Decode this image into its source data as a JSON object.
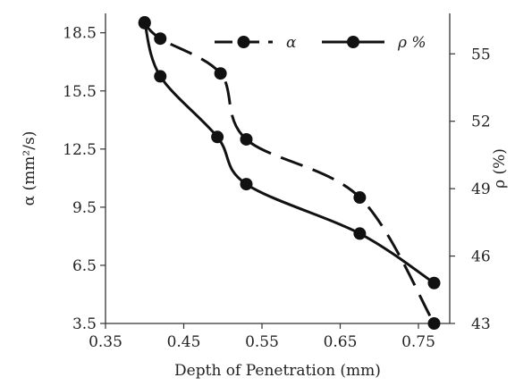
{
  "chart_data": {
    "type": "line",
    "xlabel": "Depth of Penetration (mm)",
    "ylabel_left": "α (mm²/s)",
    "ylabel_right": "ρ (%)",
    "x_ticks": [
      "0.35",
      "0.45",
      "0.55",
      "0.65",
      "0.75"
    ],
    "y_left_ticks": [
      "3.5",
      "6.5",
      "9.5",
      "12.5",
      "15.5",
      "18.5"
    ],
    "y_right_ticks": [
      "43",
      "46",
      "49",
      "52",
      "55"
    ],
    "xlim": [
      0.35,
      0.79
    ],
    "ylim_left": [
      3.5,
      19.5
    ],
    "ylim_right": [
      43,
      56.8
    ],
    "grid": false,
    "legend_position": "top-right",
    "series": [
      {
        "name": "α",
        "axis": "left",
        "style": "dashed",
        "color": "#111111",
        "x": [
          0.4,
          0.42,
          0.497,
          0.53,
          0.675,
          0.77
        ],
        "y": [
          19.0,
          18.2,
          16.4,
          13.0,
          10.0,
          3.5
        ]
      },
      {
        "name": "ρ %",
        "axis": "right",
        "style": "solid",
        "color": "#111111",
        "x": [
          0.4,
          0.42,
          0.493,
          0.53,
          0.675,
          0.77
        ],
        "y": [
          56.4,
          54.0,
          51.3,
          49.2,
          47.0,
          44.8
        ]
      }
    ]
  }
}
